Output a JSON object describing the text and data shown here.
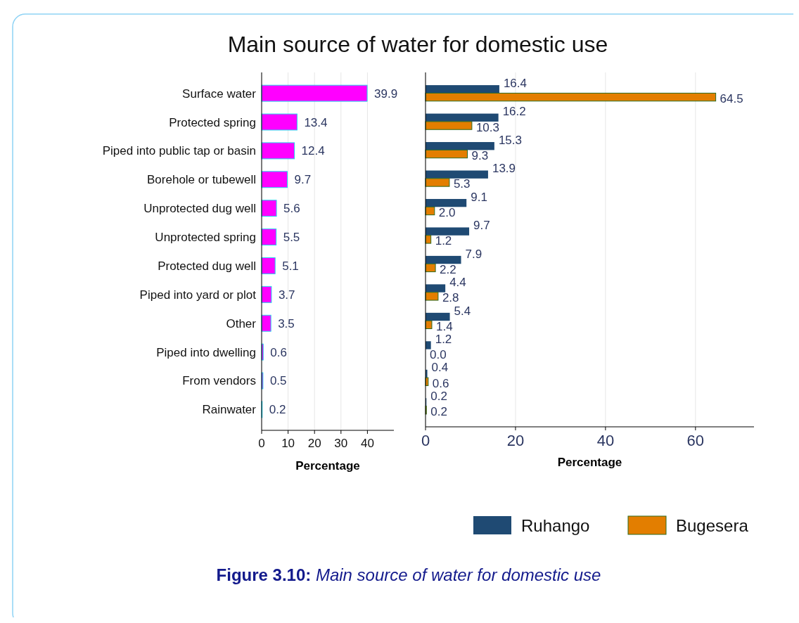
{
  "chart_data": [
    {
      "type": "bar",
      "orientation": "horizontal",
      "title": "Main source of water for domestic use",
      "xlabel": "Percentage",
      "categories": [
        "Surface water",
        "Protected spring",
        "Piped into public tap or basin",
        "Borehole or tubewell",
        "Unprotected dug well",
        "Unprotected spring",
        "Protected dug well",
        "Piped into yard or plot",
        "Other",
        "Piped into dwelling",
        "From vendors",
        "Rainwater"
      ],
      "values": [
        39.9,
        13.4,
        12.4,
        9.7,
        5.6,
        5.5,
        5.1,
        3.7,
        3.5,
        0.6,
        0.5,
        0.2
      ],
      "color": "#ff00ff",
      "xlim": [
        0,
        50
      ],
      "xticks": [
        0,
        10,
        20,
        30,
        40
      ],
      "grid": "x",
      "data_labels": true,
      "annotations": [
        "Figure 3.10: Main source of water for domestic use"
      ]
    },
    {
      "type": "bar",
      "orientation": "horizontal",
      "xlabel": "Percentage",
      "tick_labels": "x",
      "categories": [
        null,
        null,
        null,
        null,
        null,
        null,
        null,
        null,
        null,
        null,
        null,
        null
      ],
      "series": [
        {
          "name": "Ruhango",
          "color": "#1f4a73",
          "values": [
            16.4,
            16.2,
            15.3,
            13.9,
            9.1,
            9.7,
            7.9,
            4.4,
            5.4,
            1.2,
            0.4,
            0.2
          ],
          "value_labels": [
            "16.4",
            "16.2",
            "15.3",
            "13.9",
            "9.1",
            "9.7",
            "7.9",
            "4.4",
            "5.4",
            "1.2",
            "0.4",
            "0.2"
          ]
        },
        {
          "name": "Bugesera",
          "color": "#e37e00",
          "values": [
            64.5,
            10.3,
            9.3,
            5.3,
            2,
            1.2,
            2.2,
            2.8,
            1.4,
            0,
            0.6,
            0.2
          ],
          "value_labels": [
            "64.5",
            "10.3",
            "9.3",
            "5.3",
            "2.0",
            "1.2",
            "2.2",
            "2.8",
            "1.4",
            "0.0",
            "0.6",
            "0.2"
          ]
        }
      ],
      "xlim": [
        0,
        73
      ],
      "xticks": [
        0,
        20,
        40,
        60
      ],
      "grid": "x",
      "legend": "bottom"
    }
  ]
}
